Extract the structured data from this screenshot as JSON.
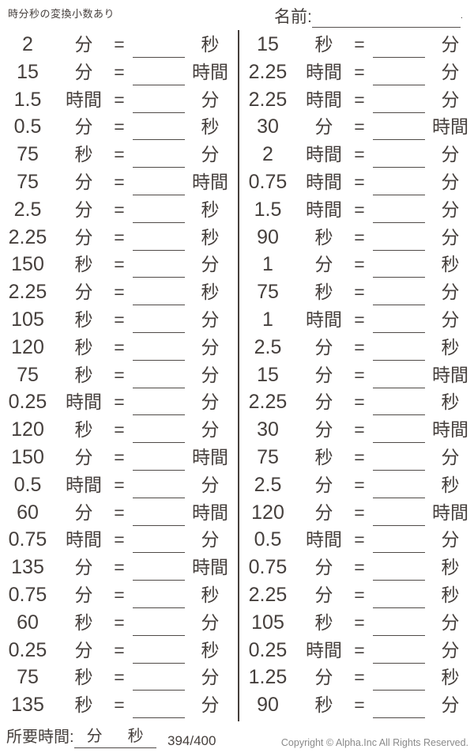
{
  "header": {
    "title": "時分秒の変換小数あり",
    "name_label": "名前:",
    "name_dot": "."
  },
  "colors": {
    "text": "#453f3c",
    "line": "#4f4a47",
    "copyright_gray": "#8a8a8a"
  },
  "problems": {
    "equals_sign": "=",
    "left": [
      {
        "value": "2",
        "from_unit": "分",
        "to_unit": "秒"
      },
      {
        "value": "15",
        "from_unit": "分",
        "to_unit": "時間"
      },
      {
        "value": "1.5",
        "from_unit": "時間",
        "to_unit": "分"
      },
      {
        "value": "0.5",
        "from_unit": "分",
        "to_unit": "秒"
      },
      {
        "value": "75",
        "from_unit": "秒",
        "to_unit": "分"
      },
      {
        "value": "75",
        "from_unit": "分",
        "to_unit": "時間"
      },
      {
        "value": "2.5",
        "from_unit": "分",
        "to_unit": "秒"
      },
      {
        "value": "2.25",
        "from_unit": "分",
        "to_unit": "秒"
      },
      {
        "value": "150",
        "from_unit": "秒",
        "to_unit": "分"
      },
      {
        "value": "2.25",
        "from_unit": "分",
        "to_unit": "秒"
      },
      {
        "value": "105",
        "from_unit": "秒",
        "to_unit": "分"
      },
      {
        "value": "120",
        "from_unit": "秒",
        "to_unit": "分"
      },
      {
        "value": "75",
        "from_unit": "秒",
        "to_unit": "分"
      },
      {
        "value": "0.25",
        "from_unit": "時間",
        "to_unit": "分"
      },
      {
        "value": "120",
        "from_unit": "秒",
        "to_unit": "分"
      },
      {
        "value": "150",
        "from_unit": "分",
        "to_unit": "時間"
      },
      {
        "value": "0.5",
        "from_unit": "時間",
        "to_unit": "分"
      },
      {
        "value": "60",
        "from_unit": "分",
        "to_unit": "時間"
      },
      {
        "value": "0.75",
        "from_unit": "時間",
        "to_unit": "分"
      },
      {
        "value": "135",
        "from_unit": "分",
        "to_unit": "時間"
      },
      {
        "value": "0.75",
        "from_unit": "分",
        "to_unit": "秒"
      },
      {
        "value": "60",
        "from_unit": "秒",
        "to_unit": "分"
      },
      {
        "value": "0.25",
        "from_unit": "分",
        "to_unit": "秒"
      },
      {
        "value": "75",
        "from_unit": "秒",
        "to_unit": "分"
      },
      {
        "value": "135",
        "from_unit": "秒",
        "to_unit": "分"
      }
    ],
    "right": [
      {
        "value": "15",
        "from_unit": "秒",
        "to_unit": "分"
      },
      {
        "value": "2.25",
        "from_unit": "時間",
        "to_unit": "分"
      },
      {
        "value": "2.25",
        "from_unit": "時間",
        "to_unit": "分"
      },
      {
        "value": "30",
        "from_unit": "分",
        "to_unit": "時間"
      },
      {
        "value": "2",
        "from_unit": "時間",
        "to_unit": "分"
      },
      {
        "value": "0.75",
        "from_unit": "時間",
        "to_unit": "分"
      },
      {
        "value": "1.5",
        "from_unit": "時間",
        "to_unit": "分"
      },
      {
        "value": "90",
        "from_unit": "秒",
        "to_unit": "分"
      },
      {
        "value": "1",
        "from_unit": "分",
        "to_unit": "秒"
      },
      {
        "value": "75",
        "from_unit": "秒",
        "to_unit": "分"
      },
      {
        "value": "1",
        "from_unit": "時間",
        "to_unit": "分"
      },
      {
        "value": "2.5",
        "from_unit": "分",
        "to_unit": "秒"
      },
      {
        "value": "15",
        "from_unit": "分",
        "to_unit": "時間"
      },
      {
        "value": "2.25",
        "from_unit": "分",
        "to_unit": "秒"
      },
      {
        "value": "30",
        "from_unit": "分",
        "to_unit": "時間"
      },
      {
        "value": "75",
        "from_unit": "秒",
        "to_unit": "分"
      },
      {
        "value": "2.5",
        "from_unit": "分",
        "to_unit": "秒"
      },
      {
        "value": "120",
        "from_unit": "分",
        "to_unit": "時間"
      },
      {
        "value": "0.5",
        "from_unit": "時間",
        "to_unit": "分"
      },
      {
        "value": "0.75",
        "from_unit": "分",
        "to_unit": "秒"
      },
      {
        "value": "2.25",
        "from_unit": "分",
        "to_unit": "秒"
      },
      {
        "value": "105",
        "from_unit": "秒",
        "to_unit": "分"
      },
      {
        "value": "0.25",
        "from_unit": "時間",
        "to_unit": "分"
      },
      {
        "value": "1.25",
        "from_unit": "分",
        "to_unit": "秒"
      },
      {
        "value": "90",
        "from_unit": "秒",
        "to_unit": "分"
      }
    ]
  },
  "footer": {
    "elapsed_label": "所要時間:",
    "elapsed_unit_minutes": "分",
    "elapsed_unit_seconds": "秒",
    "page_counter": "394/400",
    "copyright": "Copyright © Alpha.Inc All Rights Reserved."
  }
}
